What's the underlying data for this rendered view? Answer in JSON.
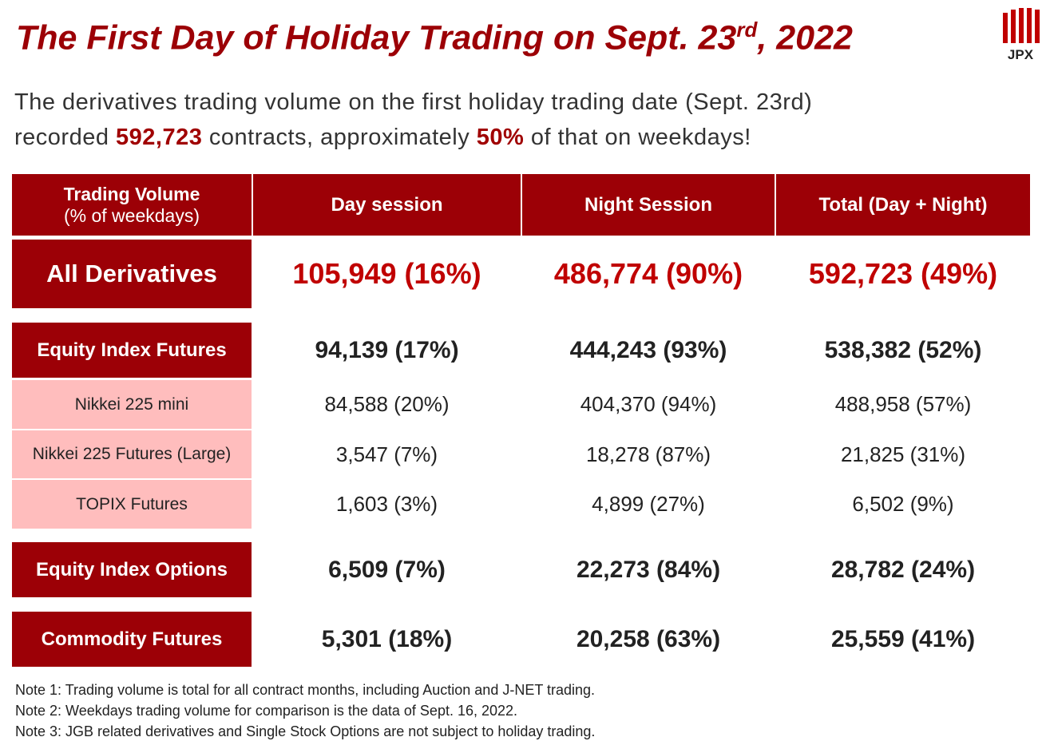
{
  "header": {
    "title": {
      "before": "The First Day of Holiday Trading on Sept. 23",
      "sup": "rd",
      "after": ", 2022"
    },
    "logo": "JPX"
  },
  "summary": {
    "parts": [
      "The derivatives trading volume on the first holiday trading date (Sept. 23rd)",
      "recorded ",
      "592,723",
      " contracts, approximately ",
      "50%",
      " of that on weekdays!"
    ]
  },
  "table": {
    "columns": [
      [
        "Trading Volume",
        "(% of weekdays)"
      ],
      "Day session",
      "Night Session",
      "Total (Day + Night)"
    ],
    "rows": [
      [
        "All Derivatives",
        "105,949 (16%)",
        "486,774 (90%)",
        "592,723 (49%)"
      ],
      [
        "Equity Index Futures",
        "94,139 (17%)",
        "444,243 (93%)",
        "538,382 (52%)"
      ],
      [
        "Nikkei 225 mini",
        "84,588 (20%)",
        "404,370 (94%)",
        "488,958 (57%)"
      ],
      [
        "Nikkei 225 Futures (Large)",
        "3,547 (7%)",
        "18,278 (87%)",
        "21,825 (31%)"
      ],
      [
        "TOPIX Futures",
        "1,603 (3%)",
        "4,899 (27%)",
        "6,502 (9%)"
      ],
      [
        "Equity Index Options",
        "6,509 (7%)",
        "22,273 (84%)",
        "28,782 (24%)"
      ],
      [
        "Commodity Futures",
        "5,301 (18%)",
        "20,258 (63%)",
        "25,559 (41%)"
      ]
    ]
  },
  "notes": [
    "Note 1: Trading volume is total for all contract months, including Auction and J-NET trading.",
    "Note 2: Weekdays trading volume for comparison is the data of Sept. 16, 2022.",
    "Note 3: JGB related derivatives and Single Stock Options are not subject to holiday trading."
  ]
}
